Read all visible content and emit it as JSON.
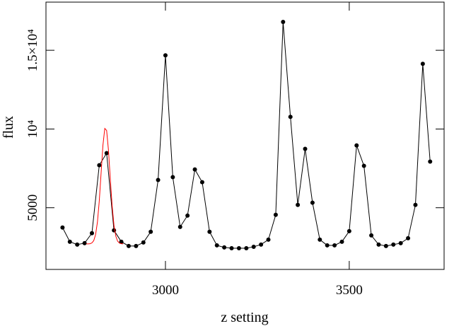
{
  "chart_data": {
    "type": "line",
    "xlabel": "z setting",
    "ylabel": "flux",
    "xlim": [
      2675,
      3758
    ],
    "ylim": [
      1080,
      18060
    ],
    "xticks": [
      3000,
      3500
    ],
    "yticks": [
      {
        "value": 5000,
        "label": "5000"
      },
      {
        "value": 10000,
        "label": "10⁴"
      },
      {
        "value": 15000,
        "label": "1.5×10⁴"
      }
    ],
    "x": [
      2720,
      2740,
      2760,
      2780,
      2800,
      2820,
      2840,
      2860,
      2880,
      2900,
      2920,
      2940,
      2960,
      2980,
      3000,
      3020,
      3040,
      3060,
      3080,
      3100,
      3120,
      3140,
      3160,
      3180,
      3200,
      3220,
      3240,
      3260,
      3280,
      3300,
      3320,
      3340,
      3360,
      3380,
      3400,
      3420,
      3440,
      3460,
      3480,
      3500,
      3520,
      3540,
      3560,
      3580,
      3600,
      3620,
      3640,
      3660,
      3680,
      3700,
      3720
    ],
    "series": [
      {
        "color": "#000000",
        "values": [
          3740,
          2840,
          2660,
          2750,
          3380,
          7700,
          8470,
          3560,
          2840,
          2570,
          2570,
          2790,
          3470,
          6760,
          14680,
          6940,
          3780,
          4500,
          7430,
          6620,
          3470,
          2610,
          2480,
          2430,
          2430,
          2430,
          2520,
          2660,
          2970,
          4550,
          16800,
          10770,
          5180,
          8740,
          5320,
          2970,
          2610,
          2610,
          2840,
          3510,
          8960,
          7660,
          3240,
          2660,
          2570,
          2660,
          2750,
          3060,
          5180,
          14140,
          7930
        ]
      }
    ],
    "fit": {
      "color": "#ff0000",
      "x": [
        2785,
        2790,
        2795,
        2800,
        2805,
        2810,
        2815,
        2820,
        2825,
        2830,
        2835,
        2840,
        2845,
        2850,
        2855,
        2860,
        2865,
        2870,
        2875,
        2880,
        2885
      ],
      "values": [
        2700,
        2703,
        2716,
        2764,
        2912,
        3292,
        4084,
        5430,
        7216,
        8979,
        10036,
        9909,
        8660,
        6837,
        5118,
        3883,
        3189,
        2870,
        2749,
        2712,
        2702
      ]
    }
  }
}
